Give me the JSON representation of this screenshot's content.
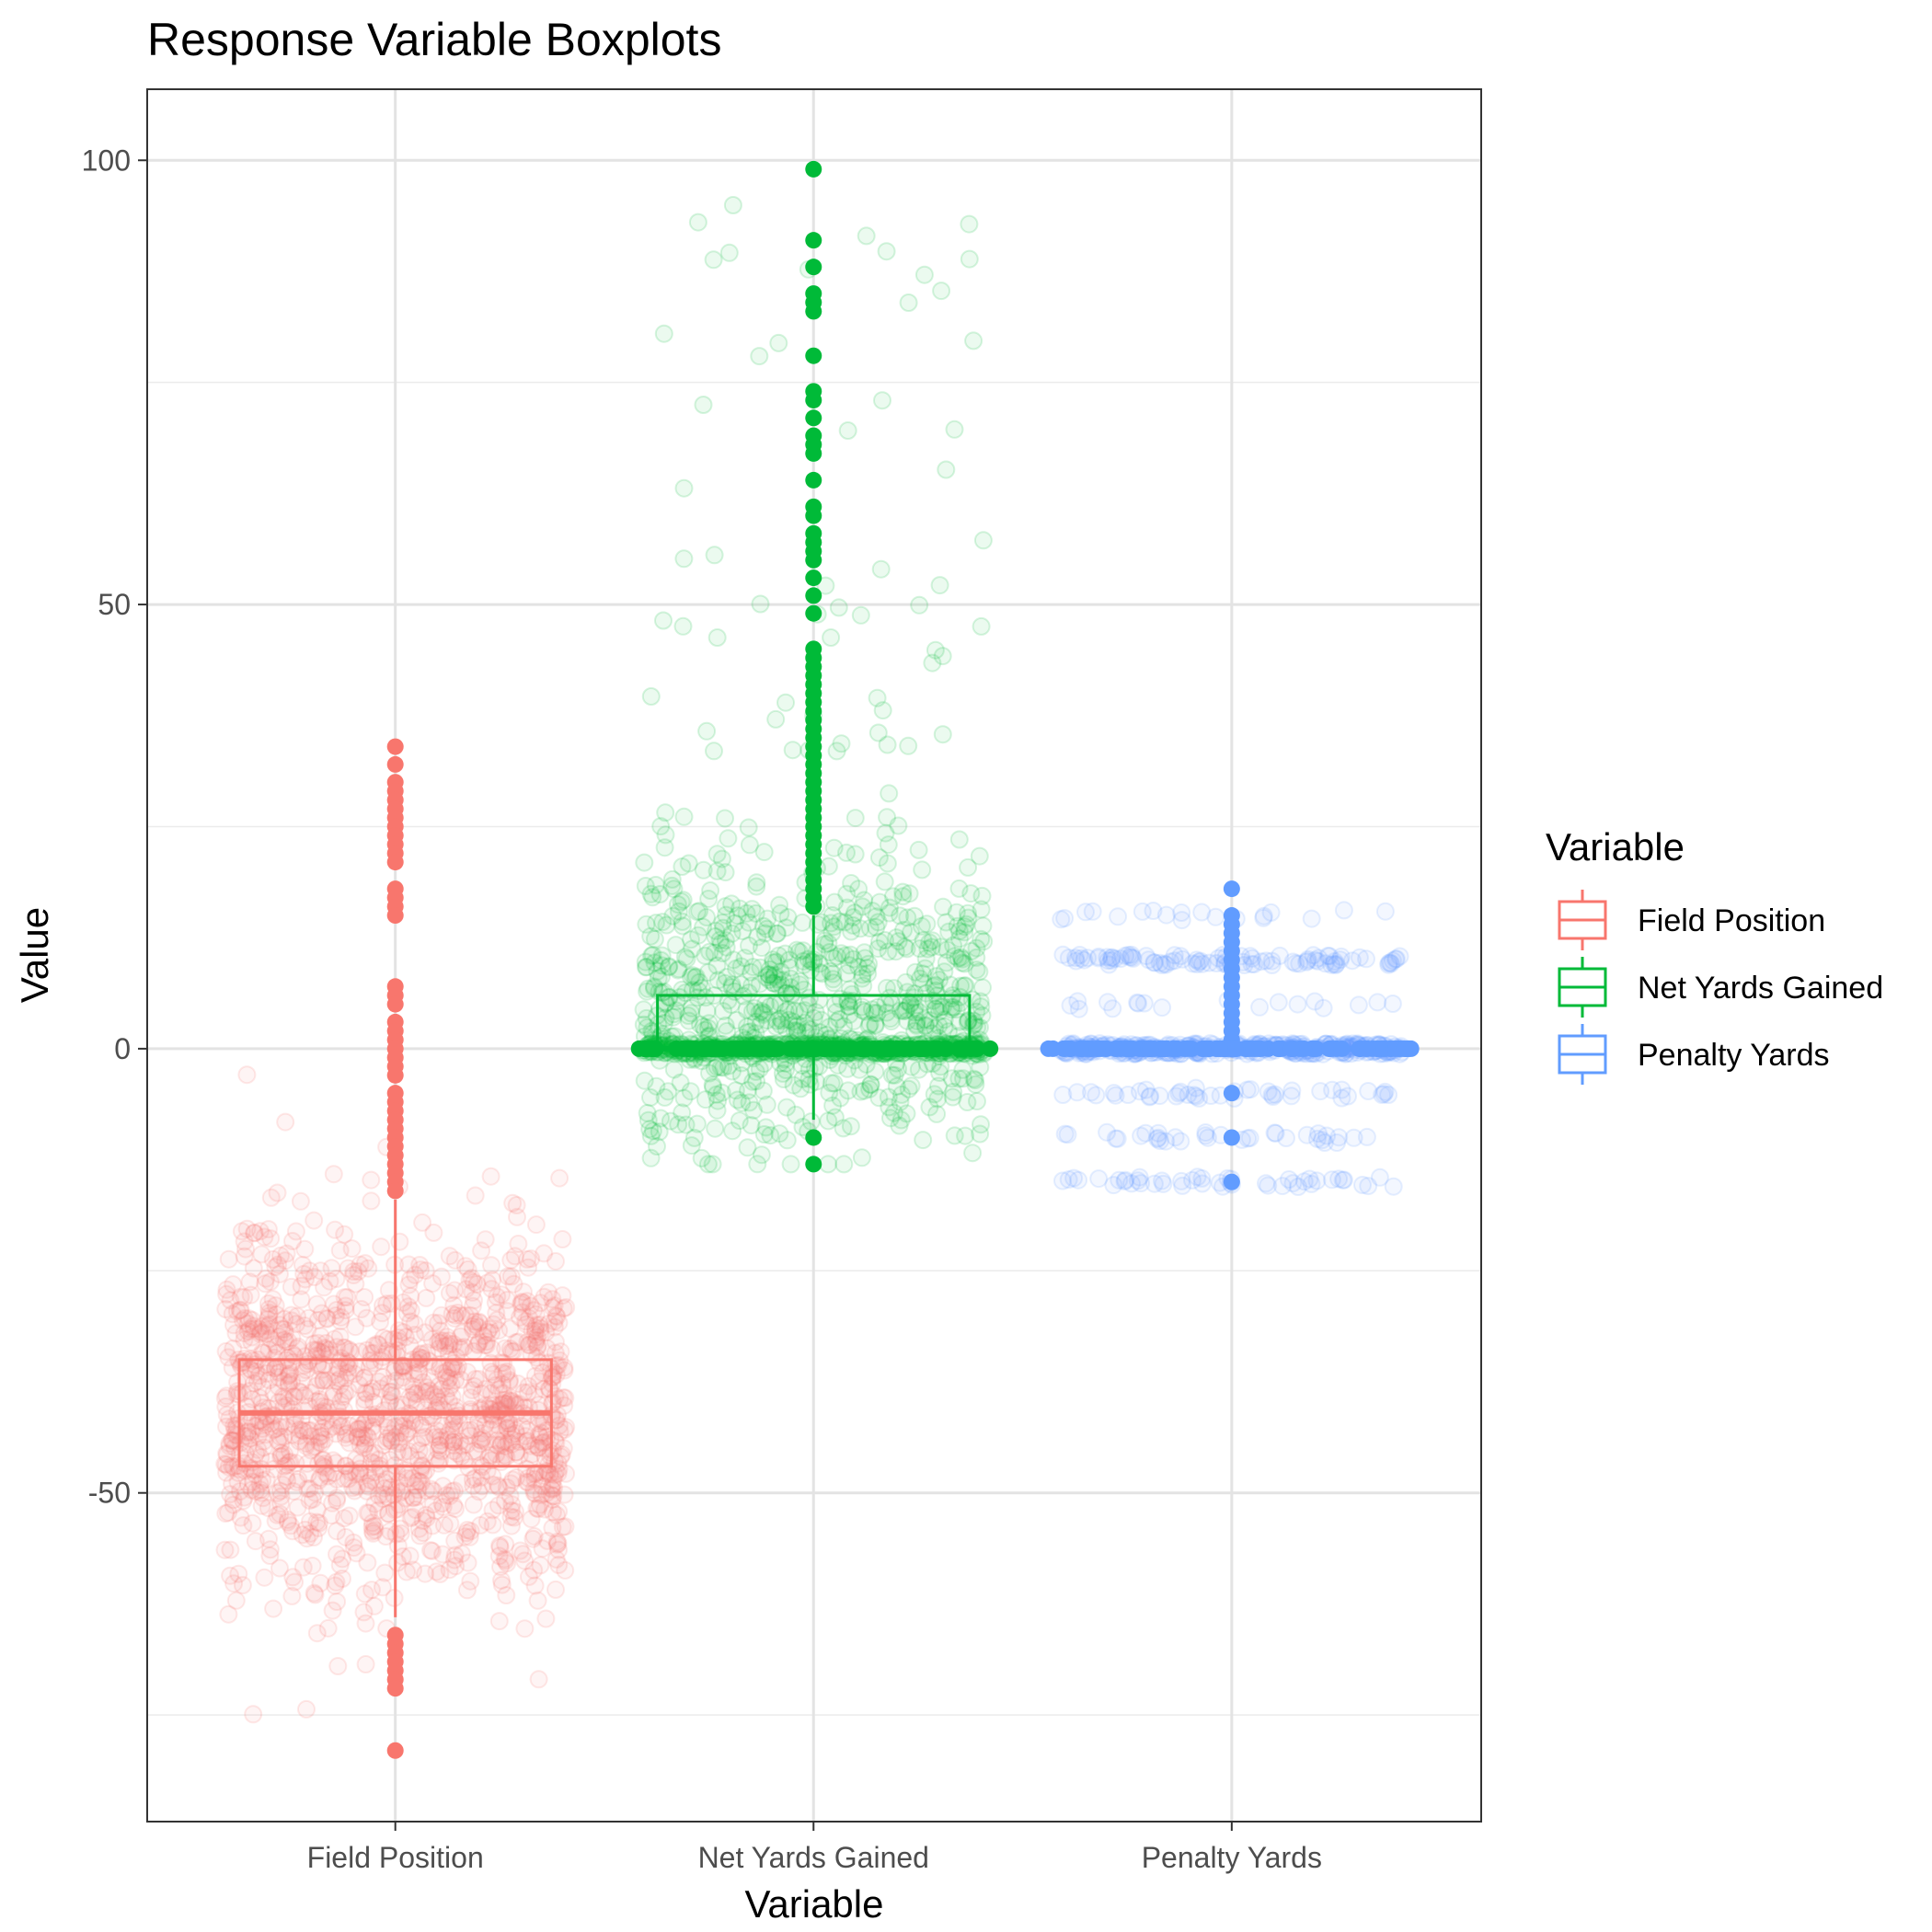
{
  "chart_data": {
    "type": "boxplot",
    "title": "Response Variable Boxplots",
    "xlabel": "Variable",
    "ylabel": "Value",
    "ylim": [
      -87,
      108
    ],
    "y_ticks": [
      -50,
      0,
      50,
      100
    ],
    "y_minor_ticks": [
      -75,
      -25,
      25,
      75
    ],
    "grid": true,
    "legend": {
      "title": "Variable",
      "position": "right"
    },
    "categories": [
      "Field Position",
      "Net Yards Gained",
      "Penalty Yards"
    ],
    "series": [
      {
        "name": "Field Position",
        "color": "#F8766D",
        "box": {
          "q1": -47,
          "median": -41,
          "q3": -35,
          "whisker_low": -64,
          "whisker_high": -17
        },
        "outliers": [
          34,
          32,
          30,
          29,
          28,
          27,
          26,
          25,
          24,
          23,
          22,
          21,
          18,
          17,
          16,
          15,
          7,
          6,
          5,
          3,
          2,
          1,
          0,
          -1,
          -2,
          -3,
          -5,
          -6,
          -7,
          -8,
          -9,
          -10,
          -11,
          -12,
          -13,
          -14,
          -15,
          -16,
          -66,
          -67,
          -68,
          -69,
          -70,
          -71,
          -72,
          -79
        ],
        "points": {
          "jitter_center": -41,
          "jitter_sd": 10,
          "n": 1400,
          "lo": -80,
          "hi": 34
        }
      },
      {
        "name": "Net Yards Gained",
        "color": "#00BA38",
        "box": {
          "q1": 0,
          "median": 0,
          "q3": 6,
          "whisker_low": -8,
          "whisker_high": 15
        },
        "outliers": [
          99,
          91,
          88,
          85,
          84,
          83,
          78,
          74,
          73,
          71,
          69,
          68,
          67,
          64,
          61,
          60,
          58,
          57,
          56,
          55,
          53,
          51,
          49,
          45,
          44,
          43,
          42,
          41,
          40,
          39,
          38,
          37,
          36,
          35,
          34,
          33,
          32,
          31,
          30,
          29,
          28,
          27,
          26,
          25,
          24,
          23,
          22,
          21,
          20,
          19,
          18,
          17,
          16,
          -10,
          -13
        ],
        "points": {
          "jitter_center": 5,
          "jitter_sd": 8,
          "n": 1300,
          "lo": -13,
          "hi": 99
        }
      },
      {
        "name": "Penalty Yards",
        "color": "#619CFF",
        "box": {
          "q1": 0,
          "median": 0,
          "q3": 0,
          "whisker_low": 0,
          "whisker_high": 0
        },
        "outliers": [
          18,
          15,
          14,
          13,
          12,
          11,
          10,
          9,
          8,
          7,
          6,
          5,
          4,
          3,
          2,
          1,
          -5,
          -10,
          -15
        ],
        "points": {
          "levels": [
            -15,
            -10,
            -5,
            0,
            5,
            10,
            15
          ],
          "weights": [
            40,
            40,
            40,
            320,
            30,
            90,
            20
          ],
          "n": 600
        }
      }
    ]
  }
}
